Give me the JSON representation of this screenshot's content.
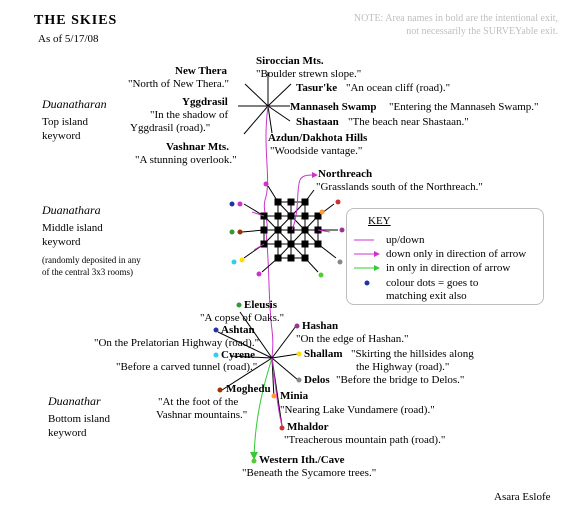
{
  "header": {
    "title": "THE SKIES",
    "date": "As of 5/17/08",
    "note_line1": "NOTE: Area names in bold are the intentional exit,",
    "note_line2": "not necessarily the SURVEYable exit."
  },
  "islands": {
    "top": {
      "name": "Duanatharan",
      "kw1": "Top island",
      "kw2": "keyword"
    },
    "middle": {
      "name": "Duanathara",
      "kw1": "Middle island",
      "kw2": "keyword",
      "note1": "(randomly deposited in any",
      "note2": "of the central 3x3 rooms)"
    },
    "bottom": {
      "name": "Duanathar",
      "kw1": "Bottom island",
      "kw2": "keyword"
    }
  },
  "top_exits": [
    {
      "id": "new-thera",
      "name": "New Thera",
      "desc": "\"North of New Thera.\""
    },
    {
      "id": "yggdrasil",
      "name": "Yggdrasil",
      "desc1": "\"In the shadow of",
      "desc2": "Yggdrasil (road).\""
    },
    {
      "id": "vashnar",
      "name": "Vashnar Mts.",
      "desc": "\"A stunning overlook.\""
    },
    {
      "id": "siroccian",
      "name": "Siroccian Mts.",
      "desc": "\"Boulder strewn slope.\""
    },
    {
      "id": "tasurke",
      "name": "Tasur'ke",
      "desc": "\"An ocean cliff (road).\""
    },
    {
      "id": "mannaseh",
      "name": "Mannaseh Swamp",
      "desc": "\"Entering the Mannaseh Swamp.\""
    },
    {
      "id": "shastaan",
      "name": "Shastaan",
      "desc": "\"The beach near Shastaan.\""
    },
    {
      "id": "azdun",
      "name": "Azdun/Dakhota Hills",
      "desc": "\"Woodside vantage.\""
    }
  ],
  "middle_exits": [
    {
      "id": "northreach",
      "name": "Northreach",
      "desc": "\"Grasslands south of the Northreach.\""
    }
  ],
  "bottom_exits": [
    {
      "id": "eleusis",
      "name": "Eleusis",
      "desc": "\"A copse of Oaks.\""
    },
    {
      "id": "ashtan",
      "name": "Ashtan",
      "desc": "\"On the Prelatorian Highway (road).\""
    },
    {
      "id": "cyrene",
      "name": "Cyrene",
      "desc": "\"Before a carved tunnel (road).\""
    },
    {
      "id": "moghedu",
      "name": "Moghedu",
      "desc1": "\"At the foot of the",
      "desc2": "Vashnar mountains.\""
    },
    {
      "id": "hashan",
      "name": "Hashan",
      "desc": "\"On the edge of Hashan.\""
    },
    {
      "id": "shallam",
      "name": "Shallam",
      "desc1": "\"Skirting the hillsides along",
      "desc2": "the Highway (road).\""
    },
    {
      "id": "delos",
      "name": "Delos",
      "desc": "\"Before the bridge to Delos.\""
    },
    {
      "id": "minia",
      "name": "Minia",
      "desc": "\"Nearing Lake Vundamere (road).\""
    },
    {
      "id": "mhaldor",
      "name": "Mhaldor",
      "desc": "\"Treacherous mountain path (road).\""
    },
    {
      "id": "western",
      "name": "Western Ith./Cave",
      "desc": "\"Beneath the Sycamore trees.\""
    }
  ],
  "key": {
    "title": "KEY",
    "updown": "up/down",
    "down_only": "down only in direction of arrow",
    "in_only": "in only in direction of arrow",
    "dots1": "colour dots = goes to",
    "dots2": "matching exit also"
  },
  "author": "Asara Eslofe",
  "colors": {
    "updown": "#cc33cc",
    "in_only": "#33cc33",
    "dot_green": "#339933",
    "dot_blue": "#2233aa",
    "dot_cyan": "#33ccee",
    "dot_brown": "#993300",
    "dot_purple": "#993399",
    "dot_yellow": "#ffdd00",
    "dot_gray": "#888888",
    "dot_orange": "#ff9933",
    "dot_red": "#cc3333",
    "dot_lime": "#55cc33"
  }
}
